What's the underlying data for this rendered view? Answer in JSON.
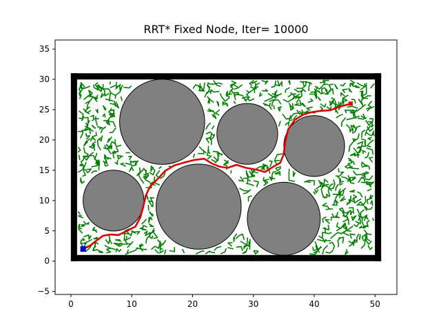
{
  "chart_data": {
    "type": "scatter",
    "title": "RRT* Fixed Node, Iter= 10000",
    "xlabel": "",
    "ylabel": "",
    "xlim": [
      -2.6,
      53.6
    ],
    "ylim": [
      -5.5,
      36.5
    ],
    "x_ticks": [
      0,
      10,
      20,
      30,
      40,
      50
    ],
    "y_ticks": [
      -5,
      0,
      5,
      10,
      15,
      20,
      25,
      30,
      35
    ],
    "grid": false,
    "boundary": {
      "x0": 0.5,
      "y0": 0.5,
      "x1": 50.5,
      "y1": 30.5,
      "color": "#000000"
    },
    "obstacles": [
      {
        "name": "obstacle-1",
        "cx": 15,
        "cy": 23,
        "r": 7
      },
      {
        "name": "obstacle-2",
        "cx": 29,
        "cy": 21,
        "r": 5
      },
      {
        "name": "obstacle-3",
        "cx": 40,
        "cy": 19,
        "r": 5
      },
      {
        "name": "obstacle-4",
        "cx": 7,
        "cy": 10,
        "r": 5
      },
      {
        "name": "obstacle-5",
        "cx": 21,
        "cy": 9,
        "r": 7
      },
      {
        "name": "obstacle-6",
        "cx": 35,
        "cy": 7,
        "r": 6
      }
    ],
    "obstacle_fill": "#808080",
    "tree_color": "#008000",
    "path_color": "#dd0000",
    "start_color": "#0000cc",
    "goal_color": "#dd0000",
    "start": {
      "x": 2,
      "y": 2
    },
    "goal": {
      "x": 46,
      "y": 26
    },
    "path": [
      [
        2,
        2
      ],
      [
        3.2,
        2.6
      ],
      [
        4.2,
        3.4
      ],
      [
        5.3,
        4.2
      ],
      [
        6.5,
        4.4
      ],
      [
        7.8,
        4.3
      ],
      [
        9.2,
        5
      ],
      [
        10.6,
        5.7
      ],
      [
        11.4,
        7.2
      ],
      [
        11.9,
        9
      ],
      [
        12.3,
        10.8
      ],
      [
        13,
        12.3
      ],
      [
        14.4,
        13.7
      ],
      [
        15.5,
        14.9
      ],
      [
        17,
        15.8
      ],
      [
        18.7,
        16.3
      ],
      [
        20.3,
        16.7
      ],
      [
        21.9,
        16.9
      ],
      [
        23.2,
        16.1
      ],
      [
        24.4,
        15.6
      ],
      [
        25.8,
        15.4
      ],
      [
        27.2,
        15.9
      ],
      [
        28.8,
        15.4
      ],
      [
        30.5,
        15.1
      ],
      [
        31.9,
        14.7
      ],
      [
        33.3,
        15.6
      ],
      [
        34.4,
        16.2
      ],
      [
        35,
        17.6
      ],
      [
        35.2,
        19.5
      ],
      [
        35.7,
        21.7
      ],
      [
        36.8,
        23.3
      ],
      [
        38.2,
        24.2
      ],
      [
        39.6,
        24.6
      ],
      [
        41,
        24.8
      ],
      [
        42.6,
        24.9
      ],
      [
        44.3,
        25.5
      ],
      [
        46,
        26
      ]
    ]
  }
}
